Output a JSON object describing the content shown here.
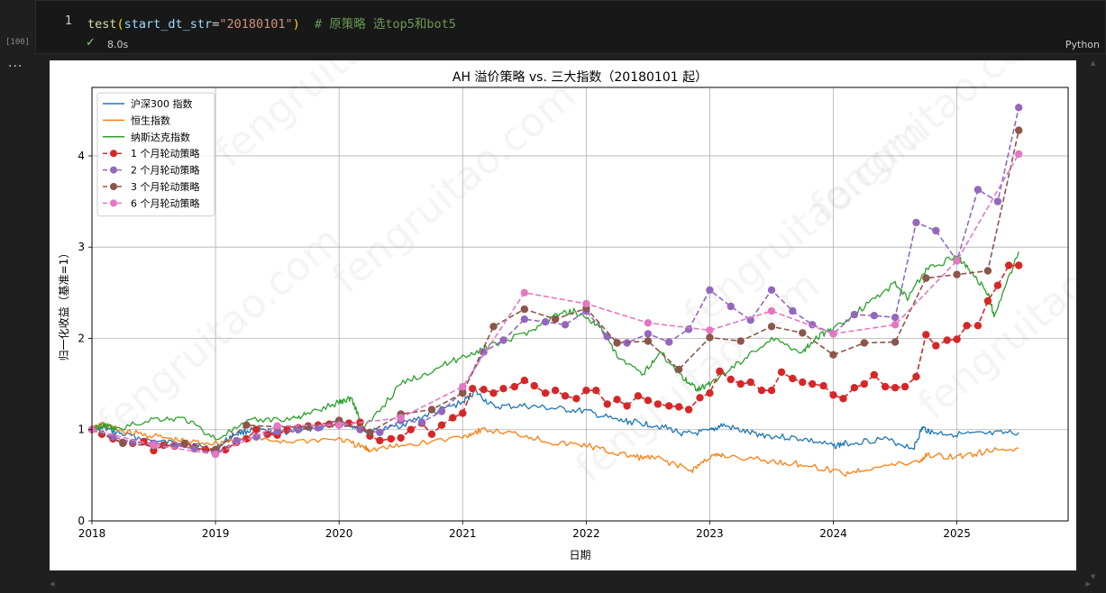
{
  "cell": {
    "line_number": "1",
    "code": {
      "fn": "test",
      "open": "(",
      "param": "start_dt_str",
      "eq": "=",
      "value": "\"20180101\"",
      "close": ")",
      "comment": "# 原策略 选top5和bot5"
    },
    "execution_count": "[100]",
    "status_icon": "check-icon",
    "duration": "8.0s",
    "language": "Python",
    "more_icon": "···"
  },
  "chart_data": {
    "type": "line",
    "title": "AH 溢价策略 vs. 三大指数（20180101 起）",
    "xlabel": "日期",
    "ylabel": "归一化收益（基准=1）",
    "xlim": [
      2018.0,
      2025.9
    ],
    "ylim": [
      0,
      4.75
    ],
    "xticks": [
      "2018",
      "2019",
      "2020",
      "2021",
      "2022",
      "2023",
      "2024",
      "2025"
    ],
    "yticks": [
      "0",
      "1",
      "2",
      "3",
      "4"
    ],
    "grid": true,
    "legend_position": "top-left",
    "watermark": "fengruitao.com",
    "series": [
      {
        "name": "沪深300 指数",
        "color": "#1f77b4",
        "style": "line",
        "x": [
          2018.0,
          2018.08,
          2018.25,
          2018.5,
          2018.75,
          2019.0,
          2019.15,
          2019.3,
          2019.5,
          2019.75,
          2020.0,
          2020.1,
          2020.25,
          2020.5,
          2020.75,
          2021.0,
          2021.1,
          2021.25,
          2021.5,
          2021.75,
          2022.0,
          2022.25,
          2022.4,
          2022.6,
          2022.8,
          2023.0,
          2023.1,
          2023.3,
          2023.5,
          2023.75,
          2024.0,
          2024.1,
          2024.4,
          2024.65,
          2024.72,
          2024.8,
          2025.0,
          2025.25,
          2025.5
        ],
        "y": [
          1.0,
          1.02,
          0.95,
          0.87,
          0.85,
          0.79,
          0.95,
          1.0,
          0.97,
          1.0,
          1.07,
          1.05,
          0.97,
          1.05,
          1.18,
          1.3,
          1.42,
          1.25,
          1.26,
          1.23,
          1.2,
          1.1,
          1.08,
          1.04,
          0.95,
          0.98,
          1.05,
          0.97,
          0.93,
          0.9,
          0.82,
          0.85,
          0.9,
          0.8,
          1.02,
          0.97,
          0.95,
          0.95,
          0.97
        ]
      },
      {
        "name": "恒生指数",
        "color": "#ff7f0e",
        "style": "line",
        "x": [
          2018.0,
          2018.08,
          2018.25,
          2018.5,
          2018.75,
          2019.0,
          2019.25,
          2019.6,
          2020.0,
          2020.2,
          2020.25,
          2020.5,
          2021.0,
          2021.15,
          2021.5,
          2021.75,
          2022.0,
          2022.2,
          2022.4,
          2022.6,
          2022.85,
          2023.0,
          2023.1,
          2023.5,
          2023.75,
          2024.1,
          2024.3,
          2024.7,
          2024.75,
          2025.0,
          2025.2,
          2025.5
        ],
        "y": [
          1.0,
          1.06,
          0.98,
          0.93,
          0.87,
          0.85,
          0.9,
          0.87,
          0.9,
          0.8,
          0.78,
          0.82,
          0.92,
          1.0,
          0.94,
          0.85,
          0.83,
          0.75,
          0.7,
          0.68,
          0.55,
          0.7,
          0.72,
          0.65,
          0.62,
          0.52,
          0.58,
          0.65,
          0.72,
          0.7,
          0.75,
          0.8
        ]
      },
      {
        "name": "纳斯达克指数",
        "color": "#2ca02c",
        "style": "line",
        "x": [
          2018.0,
          2018.1,
          2018.2,
          2018.5,
          2018.75,
          2019.0,
          2019.3,
          2019.6,
          2019.75,
          2020.0,
          2020.1,
          2020.2,
          2020.5,
          2020.75,
          2021.0,
          2021.2,
          2021.5,
          2021.75,
          2021.9,
          2022.1,
          2022.25,
          2022.45,
          2022.6,
          2022.8,
          2022.9,
          2023.0,
          2023.25,
          2023.5,
          2023.75,
          2023.85,
          2024.0,
          2024.25,
          2024.5,
          2024.6,
          2024.75,
          2025.0,
          2025.1,
          2025.25,
          2025.3,
          2025.5
        ],
        "y": [
          1.0,
          1.05,
          1.0,
          1.12,
          1.12,
          0.9,
          1.1,
          1.12,
          1.17,
          1.3,
          1.35,
          1.0,
          1.5,
          1.65,
          1.8,
          1.9,
          2.05,
          2.25,
          2.3,
          2.15,
          1.8,
          1.6,
          1.85,
          1.55,
          1.45,
          1.5,
          1.75,
          2.0,
          1.85,
          2.0,
          2.1,
          2.35,
          2.6,
          2.45,
          2.75,
          2.9,
          2.75,
          2.5,
          2.25,
          2.95
        ]
      },
      {
        "name": "1 个月轮动策略",
        "color": "#d62728",
        "style": "dashed-dot",
        "x": [
          2018.0,
          2018.08,
          2018.17,
          2018.25,
          2018.33,
          2018.42,
          2018.5,
          2018.58,
          2018.67,
          2018.75,
          2018.83,
          2018.92,
          2019.0,
          2019.08,
          2019.17,
          2019.25,
          2019.33,
          2019.42,
          2019.5,
          2019.58,
          2019.67,
          2019.75,
          2019.83,
          2019.92,
          2020.0,
          2020.08,
          2020.17,
          2020.25,
          2020.33,
          2020.42,
          2020.5,
          2020.58,
          2020.67,
          2020.75,
          2020.83,
          2020.92,
          2021.0,
          2021.08,
          2021.17,
          2021.25,
          2021.33,
          2021.42,
          2021.5,
          2021.58,
          2021.67,
          2021.75,
          2021.83,
          2021.92,
          2022.0,
          2022.08,
          2022.17,
          2022.25,
          2022.33,
          2022.42,
          2022.5,
          2022.58,
          2022.67,
          2022.75,
          2022.83,
          2022.92,
          2023.0,
          2023.08,
          2023.17,
          2023.25,
          2023.33,
          2023.42,
          2023.5,
          2023.58,
          2023.67,
          2023.75,
          2023.83,
          2023.92,
          2024.0,
          2024.08,
          2024.17,
          2024.25,
          2024.33,
          2024.42,
          2024.5,
          2024.58,
          2024.67,
          2024.75,
          2024.83,
          2024.92,
          2025.0,
          2025.08,
          2025.17,
          2025.25,
          2025.33,
          2025.42,
          2025.5
        ],
        "y": [
          1.0,
          0.95,
          0.9,
          0.86,
          0.85,
          0.87,
          0.77,
          0.83,
          0.82,
          0.84,
          0.8,
          0.78,
          0.77,
          0.78,
          0.86,
          0.9,
          1.0,
          0.95,
          0.94,
          1.0,
          1.02,
          1.04,
          1.05,
          1.06,
          1.05,
          1.07,
          1.08,
          0.93,
          0.88,
          0.9,
          0.91,
          1.0,
          1.07,
          0.95,
          1.05,
          1.13,
          1.18,
          1.45,
          1.44,
          1.4,
          1.45,
          1.47,
          1.54,
          1.48,
          1.4,
          1.43,
          1.37,
          1.34,
          1.43,
          1.43,
          1.28,
          1.33,
          1.26,
          1.37,
          1.32,
          1.28,
          1.26,
          1.25,
          1.22,
          1.35,
          1.4,
          1.64,
          1.55,
          1.5,
          1.52,
          1.43,
          1.43,
          1.63,
          1.56,
          1.52,
          1.5,
          1.48,
          1.38,
          1.34,
          1.46,
          1.5,
          1.6,
          1.47,
          1.46,
          1.47,
          1.58,
          2.04,
          1.92,
          1.98,
          1.99,
          2.14,
          2.14,
          2.41,
          2.58,
          2.8,
          2.8
        ]
      },
      {
        "name": "2 个月轮动策略",
        "color": "#9467bd",
        "style": "dashed-dot",
        "x": [
          2018.0,
          2018.17,
          2018.33,
          2018.5,
          2018.67,
          2018.83,
          2019.0,
          2019.17,
          2019.33,
          2019.5,
          2019.67,
          2019.83,
          2020.0,
          2020.17,
          2020.33,
          2020.5,
          2020.67,
          2020.83,
          2021.0,
          2021.17,
          2021.33,
          2021.5,
          2021.67,
          2021.83,
          2022.0,
          2022.17,
          2022.33,
          2022.5,
          2022.67,
          2022.83,
          2023.0,
          2023.17,
          2023.33,
          2023.5,
          2023.67,
          2023.83,
          2024.0,
          2024.17,
          2024.33,
          2024.5,
          2024.67,
          2024.83,
          2025.0,
          2025.17,
          2025.33,
          2025.5
        ],
        "y": [
          1.0,
          0.92,
          0.86,
          0.85,
          0.83,
          0.79,
          0.74,
          0.88,
          0.92,
          0.98,
          1.0,
          1.02,
          1.1,
          1.0,
          0.97,
          1.1,
          1.08,
          1.2,
          1.42,
          1.85,
          1.98,
          2.21,
          2.18,
          2.15,
          2.3,
          2.02,
          1.95,
          2.05,
          1.96,
          2.1,
          2.53,
          2.35,
          2.2,
          2.53,
          2.3,
          2.15,
          2.05,
          2.26,
          2.25,
          2.23,
          3.27,
          3.18,
          2.85,
          3.63,
          3.5,
          4.53
        ]
      },
      {
        "name": "3 个月轮动策略",
        "color": "#8c564b",
        "style": "dashed-dot",
        "x": [
          2018.0,
          2018.25,
          2018.5,
          2018.75,
          2019.0,
          2019.25,
          2019.5,
          2019.75,
          2020.0,
          2020.25,
          2020.5,
          2020.75,
          2021.0,
          2021.25,
          2021.5,
          2021.75,
          2022.0,
          2022.25,
          2022.5,
          2022.75,
          2023.0,
          2023.25,
          2023.5,
          2023.75,
          2024.0,
          2024.25,
          2024.5,
          2024.75,
          2025.0,
          2025.25,
          2025.5
        ],
        "y": [
          1.0,
          0.85,
          0.82,
          0.85,
          0.78,
          1.05,
          1.03,
          1.03,
          1.1,
          0.97,
          1.17,
          1.22,
          1.4,
          2.13,
          2.32,
          2.21,
          2.33,
          1.95,
          1.97,
          1.66,
          2.01,
          1.97,
          2.13,
          2.06,
          1.82,
          1.95,
          1.96,
          2.66,
          2.7,
          2.74,
          4.28
        ]
      },
      {
        "name": "6 个月轮动策略",
        "color": "#e377c2",
        "style": "dashed-dot",
        "x": [
          2018.0,
          2018.5,
          2019.0,
          2019.5,
          2020.0,
          2020.5,
          2021.0,
          2021.5,
          2022.0,
          2022.5,
          2023.0,
          2023.5,
          2024.0,
          2024.5,
          2025.0,
          2025.5
        ],
        "y": [
          1.0,
          0.83,
          0.73,
          1.04,
          1.05,
          1.13,
          1.47,
          2.5,
          2.38,
          2.17,
          2.09,
          2.3,
          2.05,
          2.15,
          2.85,
          4.02
        ]
      }
    ]
  }
}
